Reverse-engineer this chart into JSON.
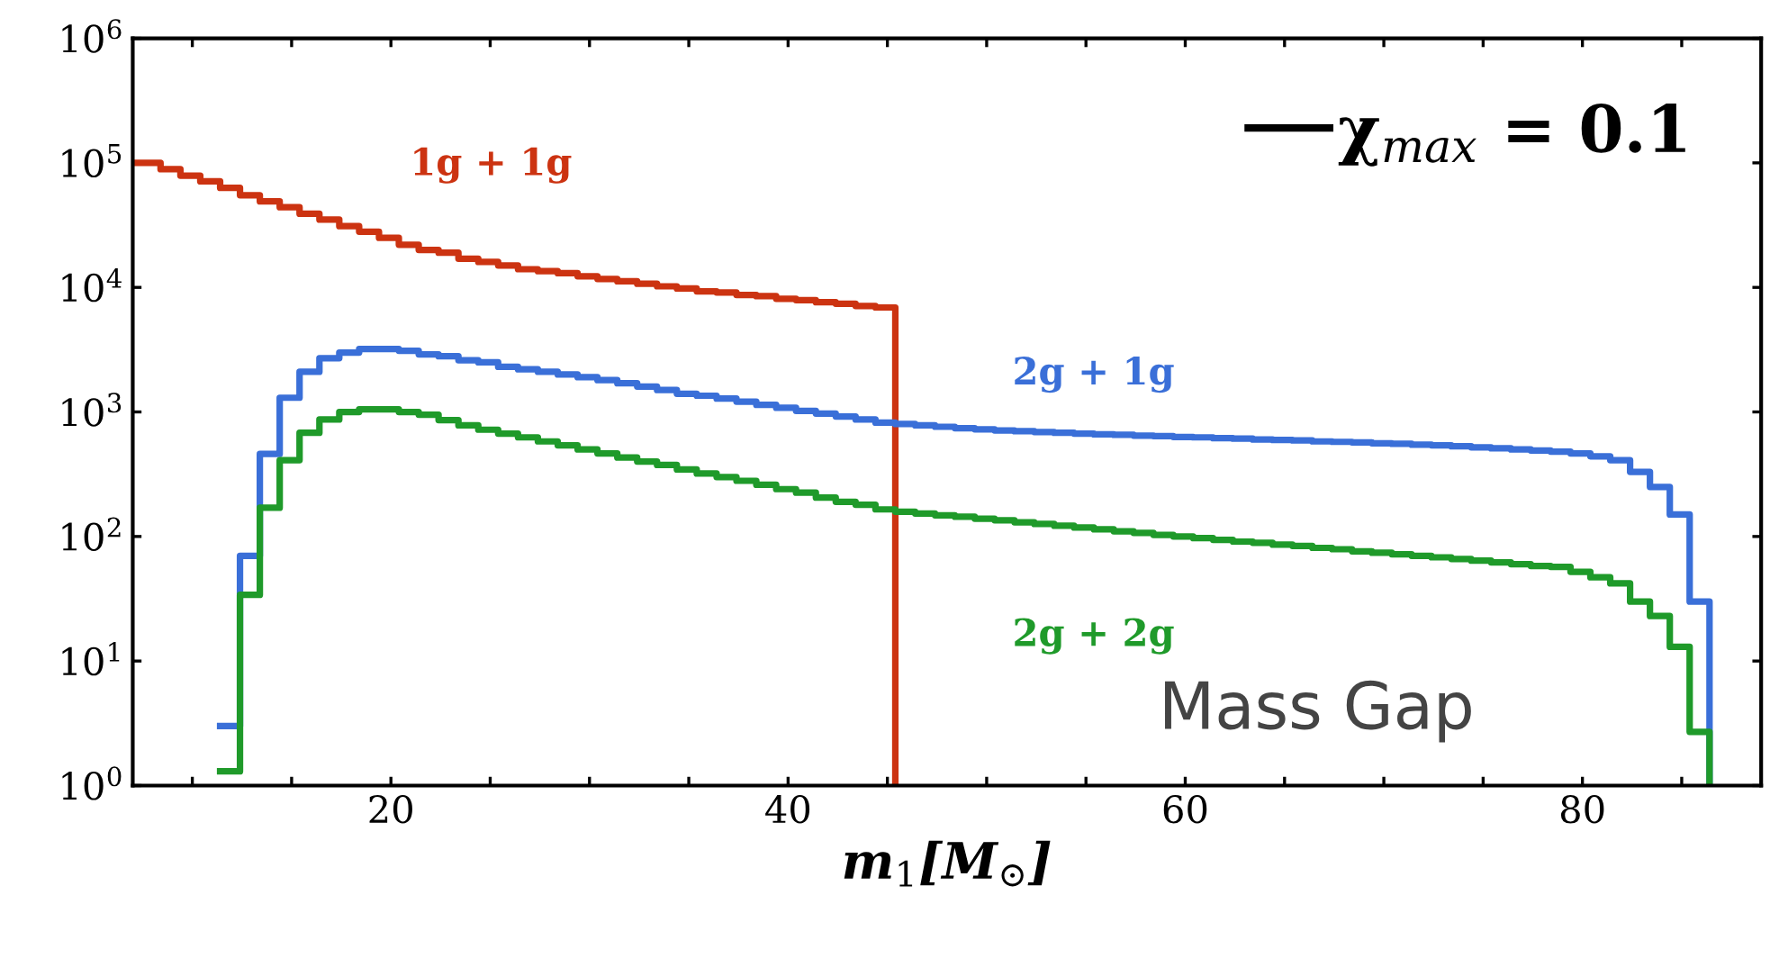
{
  "chart_data": {
    "type": "step",
    "xlabel": "m$_{1}$[M$_{⊙}$]",
    "log": "y",
    "xlim": [
      7,
      89
    ],
    "ylim": [
      1,
      1000000
    ],
    "xticks": [
      {
        "value": 10,
        "label": null
      },
      {
        "value": 15,
        "label": null
      },
      20,
      {
        "value": 25,
        "label": null
      },
      {
        "value": 30,
        "label": null
      },
      {
        "value": 35,
        "label": null
      },
      40,
      {
        "value": 45,
        "label": null
      },
      {
        "value": 50,
        "label": null
      },
      {
        "value": 55,
        "label": null
      },
      60,
      {
        "value": 65,
        "label": null
      },
      {
        "value": 70,
        "label": null
      },
      {
        "value": 75,
        "label": null
      },
      80,
      {
        "value": 85,
        "label": null
      }
    ],
    "yticks": [
      {
        "value": 1,
        "label": "10$^{0}$"
      },
      {
        "value": 10,
        "label": "10$^{1}$"
      },
      {
        "value": 100,
        "label": "10$^{2}$"
      },
      {
        "value": 1000,
        "label": "10$^{3}$"
      },
      {
        "value": 10000,
        "label": "10$^{4}$"
      },
      {
        "value": 100000,
        "label": "10$^{5}$"
      },
      {
        "value": 1000000,
        "label": "10$^{6}$"
      }
    ],
    "grid": false,
    "annotations": [
      "χ$_{max}$ = 0.1",
      "Mass Gap"
    ],
    "series": [
      {
        "name": "1g + 1g",
        "color": "#cc3311",
        "x": [
          7,
          8.4,
          9.4,
          10.4,
          11.4,
          12.4,
          13.4,
          14.4,
          15.4,
          16.4,
          17.4,
          18.4,
          19.4,
          20.4,
          21.4,
          22.4,
          23.4,
          24.4,
          25.4,
          26.4,
          27.4,
          28.4,
          29.4,
          30.4,
          31.4,
          32.4,
          33.4,
          34.4,
          35.4,
          36.4,
          37.4,
          38.4,
          39.4,
          40.4,
          41.4,
          42.4,
          43.4,
          44.4,
          45.4
        ],
        "values": [
          100000,
          89000,
          79000,
          71000,
          63000,
          55000,
          49000,
          44000,
          39000,
          35000,
          31000,
          28000,
          25000,
          22000,
          20000,
          19000,
          17000,
          16000,
          15000,
          14000,
          13500,
          13000,
          12300,
          11700,
          11200,
          10700,
          10200,
          9800,
          9300,
          9100,
          8700,
          8500,
          8100,
          7900,
          7600,
          7400,
          7100,
          6900,
          1
        ]
      },
      {
        "name": "2g + 1g",
        "color": "#3a6fd8",
        "x": [
          11.4,
          12.4,
          13.4,
          14.4,
          15.4,
          16.4,
          17.4,
          18.4,
          19.4,
          20.4,
          21.4,
          22.4,
          23.4,
          24.4,
          25.4,
          26.4,
          27.4,
          28.4,
          29.4,
          30.4,
          31.4,
          32.4,
          33.4,
          34.4,
          35.4,
          36.4,
          37.4,
          38.4,
          39.4,
          40.4,
          41.4,
          42.4,
          43.4,
          44.4,
          45.4,
          46.4,
          47.4,
          48.4,
          49.4,
          50.4,
          51.4,
          52.4,
          53.4,
          54.4,
          55.4,
          56.4,
          57.4,
          58.4,
          59.4,
          60.4,
          61.4,
          62.4,
          63.4,
          64.4,
          65.4,
          66.4,
          67.4,
          68.4,
          69.4,
          70.4,
          71.4,
          72.4,
          73.4,
          74.4,
          75.4,
          76.4,
          77.4,
          78.4,
          79.4,
          80.4,
          81.4,
          82.4,
          83.4,
          84.4,
          85.4,
          86.4
        ],
        "values": [
          3,
          70,
          460,
          1300,
          2100,
          2700,
          3000,
          3200,
          3200,
          3100,
          2900,
          2800,
          2600,
          2500,
          2300,
          2200,
          2100,
          2000,
          1900,
          1800,
          1700,
          1600,
          1500,
          1400,
          1350,
          1280,
          1210,
          1140,
          1080,
          1020,
          970,
          920,
          870,
          820,
          800,
          780,
          760,
          740,
          725,
          710,
          700,
          690,
          680,
          670,
          660,
          655,
          645,
          640,
          630,
          625,
          615,
          610,
          600,
          595,
          590,
          580,
          575,
          570,
          560,
          555,
          545,
          540,
          530,
          520,
          510,
          500,
          490,
          480,
          465,
          440,
          410,
          330,
          250,
          150,
          30,
          1
        ]
      },
      {
        "name": "2g + 2g",
        "color": "#1f9a2a",
        "x": [
          11.4,
          12.4,
          13.4,
          14.4,
          15.4,
          16.4,
          17.4,
          18.4,
          19.4,
          20.4,
          21.4,
          22.4,
          23.4,
          24.4,
          25.4,
          26.4,
          27.4,
          28.4,
          29.4,
          30.4,
          31.4,
          32.4,
          33.4,
          34.4,
          35.4,
          36.4,
          37.4,
          38.4,
          39.4,
          40.4,
          41.4,
          42.4,
          43.4,
          44.4,
          45.4,
          46.4,
          47.4,
          48.4,
          49.4,
          50.4,
          51.4,
          52.4,
          53.4,
          54.4,
          55.4,
          56.4,
          57.4,
          58.4,
          59.4,
          60.4,
          61.4,
          62.4,
          63.4,
          64.4,
          65.4,
          66.4,
          67.4,
          68.4,
          69.4,
          70.4,
          71.4,
          72.4,
          73.4,
          74.4,
          75.4,
          76.4,
          77.4,
          78.4,
          79.4,
          80.4,
          81.4,
          82.4,
          83.4,
          84.4,
          85.4,
          86.4
        ],
        "values": [
          1.3,
          34,
          170,
          410,
          680,
          870,
          1000,
          1050,
          1050,
          1000,
          950,
          860,
          780,
          720,
          670,
          625,
          580,
          540,
          500,
          465,
          430,
          400,
          375,
          345,
          320,
          300,
          280,
          260,
          240,
          225,
          205,
          190,
          180,
          165,
          158,
          153,
          148,
          144,
          139,
          135,
          130,
          126,
          122,
          118,
          114,
          110,
          107,
          103,
          100,
          97,
          94,
          91,
          89,
          86,
          84,
          81,
          79,
          76,
          74,
          72,
          70,
          68,
          66,
          64,
          62,
          60,
          58,
          57,
          52,
          47,
          42,
          30,
          23,
          13,
          2.7,
          1
        ]
      }
    ]
  }
}
